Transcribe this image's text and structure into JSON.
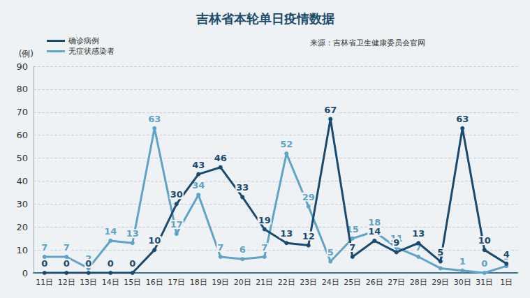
{
  "chart_data": {
    "type": "line",
    "title": "吉林省本轮单日疫情数据",
    "source": "来源：吉林省卫生健康委员会官网",
    "ylabel": "(例)",
    "categories": [
      "11日",
      "12日",
      "13日",
      "14日",
      "15日",
      "16日",
      "17日",
      "18日",
      "19日",
      "20日",
      "21日",
      "22日",
      "23日",
      "24日",
      "25日",
      "26日",
      "27日",
      "28日",
      "29日",
      "30日",
      "31日",
      "1日"
    ],
    "series": [
      {
        "name": "确诊病例",
        "color": "#1b4a70",
        "values": [
          0,
          0,
          0,
          0,
          0,
          10,
          30,
          43,
          46,
          33,
          19,
          13,
          12,
          67,
          7,
          14,
          9,
          13,
          5,
          63,
          10,
          4
        ]
      },
      {
        "name": "无症状感染者",
        "color": "#5fa3c6",
        "values": [
          7,
          7,
          2,
          14,
          13,
          63,
          17,
          34,
          7,
          6,
          7,
          52,
          29,
          5,
          15,
          18,
          11,
          7,
          2,
          1,
          0,
          3
        ]
      }
    ],
    "ylim": [
      0,
      90
    ],
    "yticks": [
      0,
      10,
      20,
      30,
      40,
      50,
      60,
      70,
      80,
      90
    ],
    "grid": true,
    "legend": "top-left",
    "data_labels": true,
    "marker": "circle"
  }
}
